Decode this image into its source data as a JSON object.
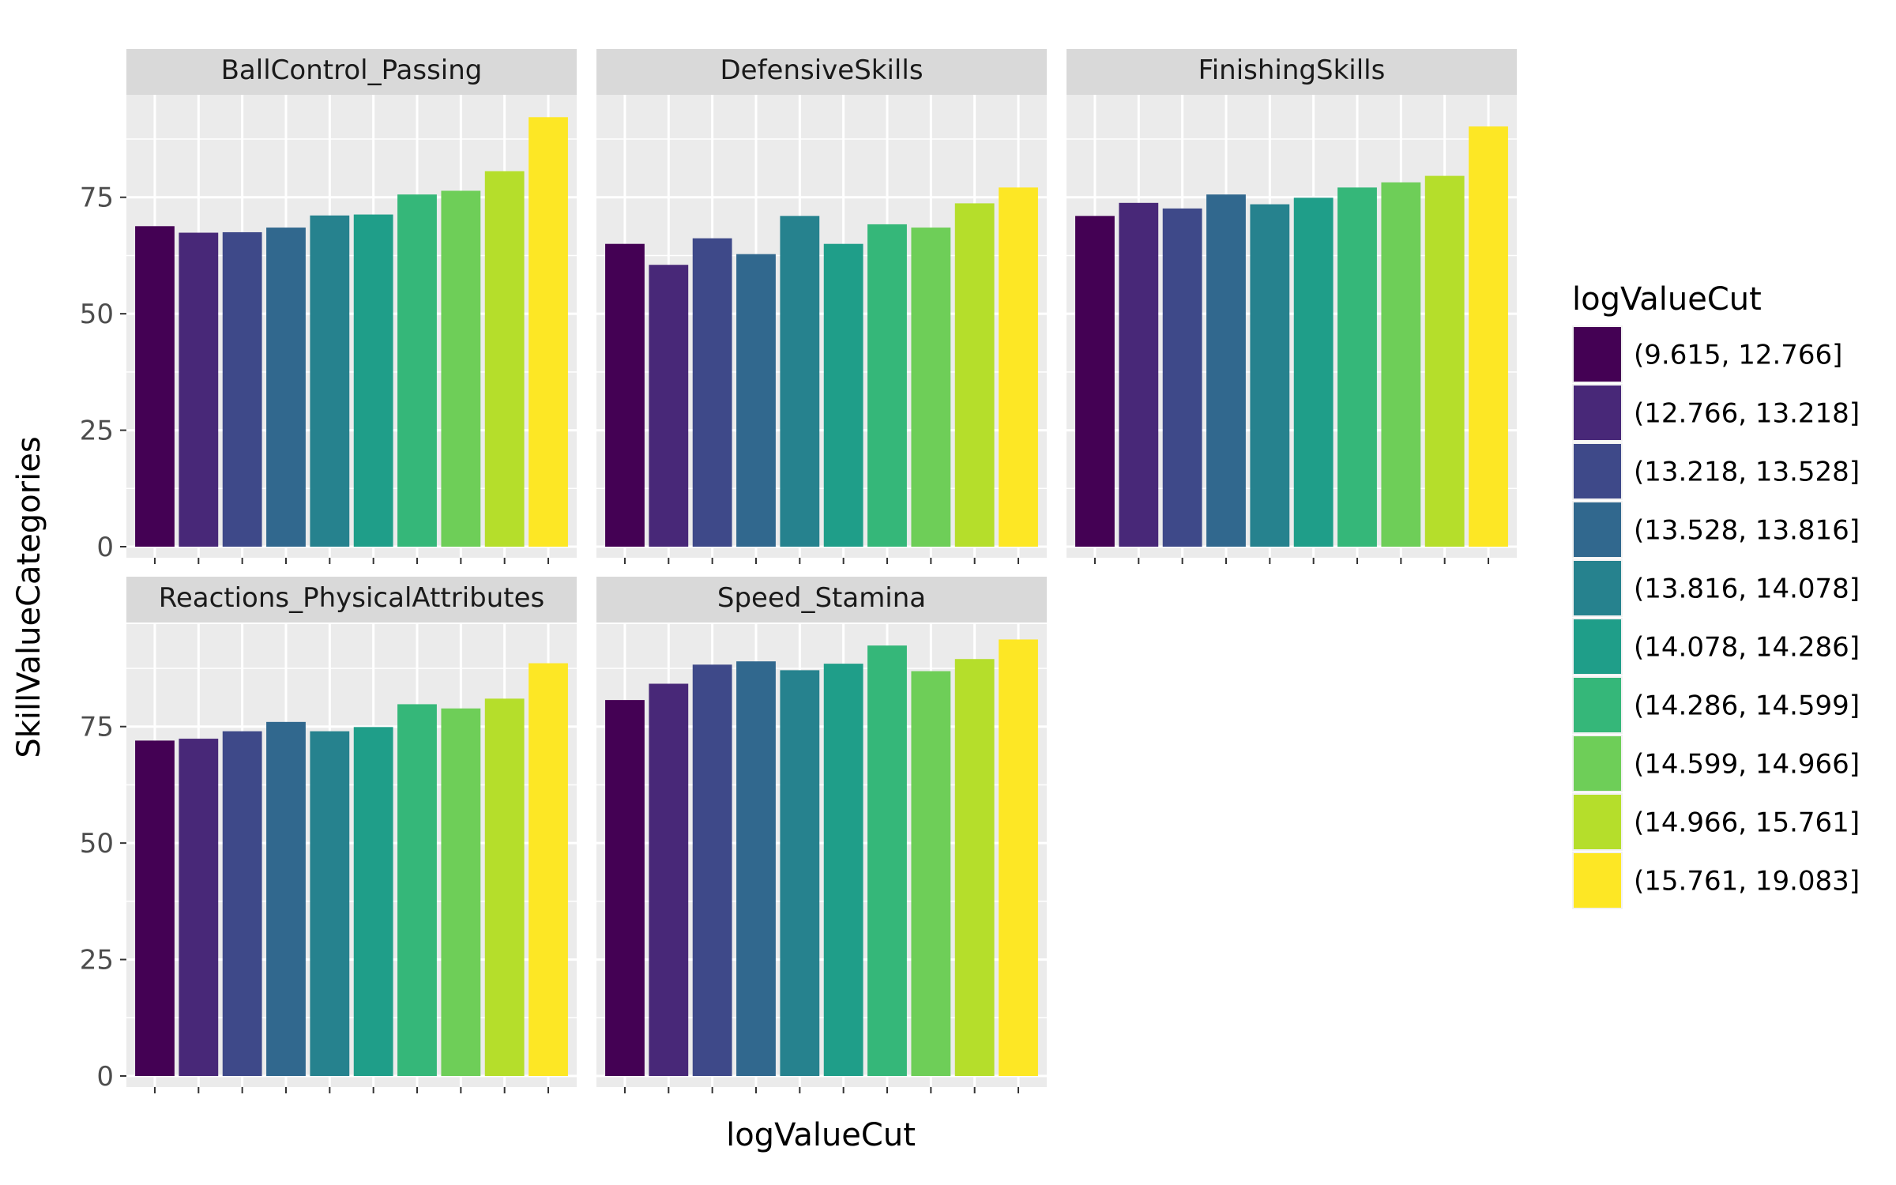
{
  "chart_data": {
    "type": "bar",
    "title": "",
    "xlabel": "logValueCut",
    "ylabel": "SkillValueCategories",
    "ylim": [
      0,
      97
    ],
    "y_ticks": [
      0,
      25,
      50,
      75
    ],
    "x_tick_labels_shown": false,
    "grid": true,
    "legend": {
      "title": "logValueCut",
      "placement": "right"
    },
    "categories": [
      "(9.615, 12.766]",
      "(12.766, 13.218]",
      "(13.218, 13.528]",
      "(13.528, 13.816]",
      "(13.816, 14.078]",
      "(14.078, 14.286]",
      "(14.286, 14.599]",
      "(14.599, 14.966]",
      "(14.966, 15.761]",
      "(15.761, 19.083]"
    ],
    "colors": [
      "#440154",
      "#482878",
      "#3e4989",
      "#31688e",
      "#26828e",
      "#1f9e89",
      "#35b779",
      "#6ece58",
      "#b5de2b",
      "#fde725"
    ],
    "facets": [
      {
        "name": "BallControl_Passing",
        "values": [
          68.8,
          67.4,
          67.5,
          68.5,
          71.1,
          71.3,
          75.6,
          76.4,
          80.6,
          92.2
        ]
      },
      {
        "name": "DefensiveSkills",
        "values": [
          65.0,
          60.5,
          66.2,
          62.8,
          71.0,
          65.0,
          69.2,
          68.5,
          73.7,
          77.1
        ]
      },
      {
        "name": "FinishingSkills",
        "values": [
          71.0,
          73.8,
          72.6,
          75.6,
          73.5,
          74.9,
          77.1,
          78.2,
          79.6,
          90.2
        ]
      },
      {
        "name": "Reactions_PhysicalAttributes",
        "values": [
          72.0,
          72.4,
          74.0,
          76.0,
          74.0,
          74.9,
          79.8,
          78.9,
          81.0,
          88.6
        ]
      },
      {
        "name": "Speed_Stamina",
        "values": [
          80.7,
          84.2,
          88.3,
          89.0,
          87.1,
          88.5,
          92.4,
          86.9,
          89.5,
          93.7
        ]
      }
    ]
  }
}
